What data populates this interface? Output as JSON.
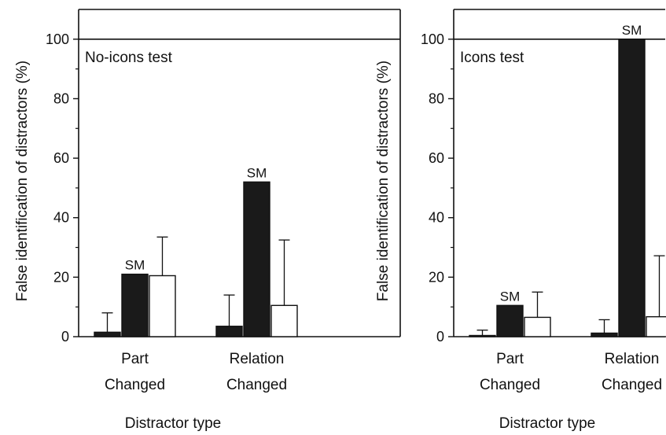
{
  "chart_data": [
    {
      "type": "bar",
      "panel_label": "No-icons test",
      "ylabel": "False identification of distractors (%)",
      "xlabel": "Distractor type",
      "ylim": [
        0,
        110
      ],
      "yticks": [
        "0",
        "20",
        "40",
        "60",
        "80",
        "100"
      ],
      "yticks_values": [
        0,
        20,
        40,
        60,
        80,
        100
      ],
      "reference_line": 100,
      "categories": [
        {
          "line1": "Part",
          "line2": "Changed"
        },
        {
          "line1": "Relation",
          "line2": "Changed"
        }
      ],
      "series": [
        {
          "values": [
            1.5,
            3.5
          ],
          "error": [
            6.5,
            10.5
          ],
          "fill": "#1a1a1a"
        },
        {
          "values": [
            21,
            52
          ],
          "error": [
            0,
            0
          ],
          "fill": "#1a1a1a"
        },
        {
          "values": [
            20.5,
            10.5
          ],
          "error": [
            13,
            22
          ],
          "fill": "#ffffff"
        }
      ],
      "annotations": [
        {
          "text": "SM",
          "category": 0,
          "series": 1
        },
        {
          "text": "SM",
          "category": 1,
          "series": 1
        }
      ]
    },
    {
      "type": "bar",
      "panel_label": "Icons test",
      "ylabel": "False identification of distractors (%)",
      "xlabel": "Distractor type",
      "ylim": [
        0,
        110
      ],
      "yticks": [
        "0",
        "20",
        "40",
        "60",
        "80",
        "100"
      ],
      "yticks_values": [
        0,
        20,
        40,
        60,
        80,
        100
      ],
      "reference_line": 100,
      "categories": [
        {
          "line1": "Part",
          "line2": "Changed"
        },
        {
          "line1": "Relation",
          "line2": "Changed"
        }
      ],
      "series": [
        {
          "values": [
            0.4,
            1.2
          ],
          "error": [
            1.8,
            4.5
          ],
          "fill": "#1a1a1a"
        },
        {
          "values": [
            10.5,
            100
          ],
          "error": [
            0,
            0
          ],
          "fill": "#1a1a1a"
        },
        {
          "values": [
            6.5,
            6.7
          ],
          "error": [
            8.5,
            20.5
          ],
          "fill": "#ffffff"
        }
      ],
      "annotations": [
        {
          "text": "SM",
          "category": 0,
          "series": 1
        },
        {
          "text": "SM",
          "category": 1,
          "series": 1
        }
      ]
    }
  ]
}
